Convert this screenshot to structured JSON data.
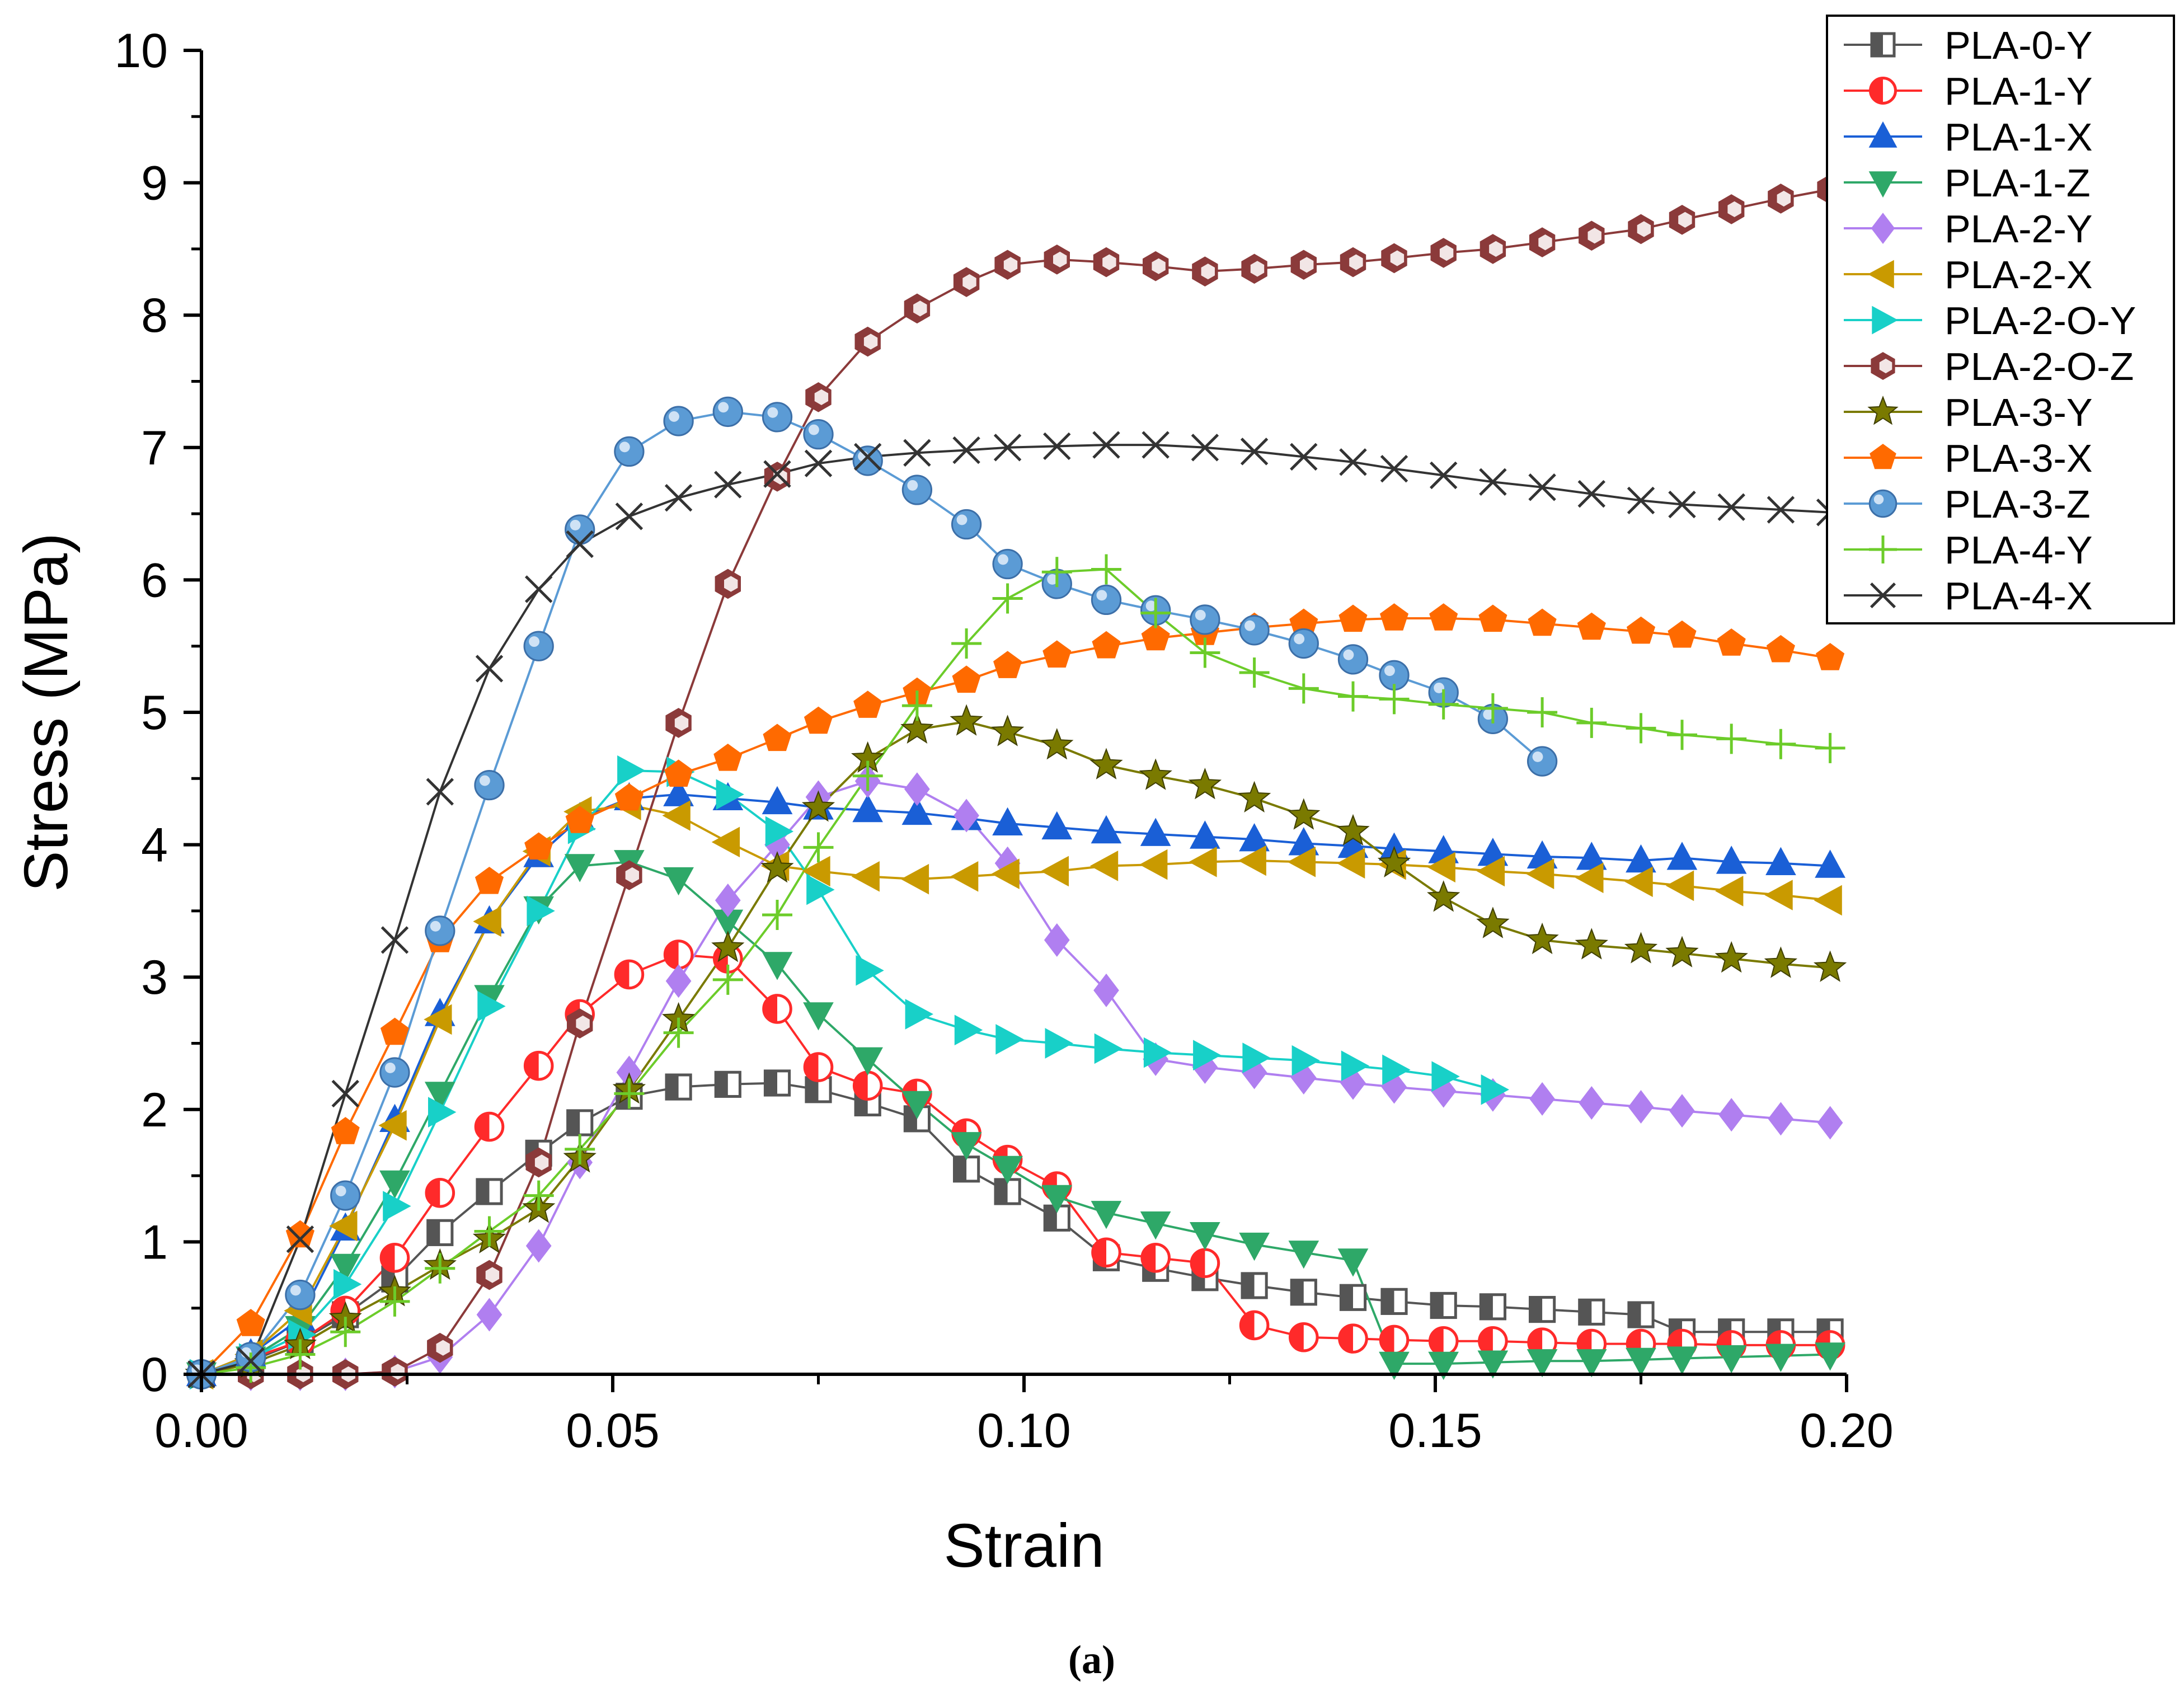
{
  "chart_data": {
    "type": "line",
    "title": "",
    "xlabel": "Strain",
    "ylabel": "Stress (MPa)",
    "caption": "(a)",
    "xlim": [
      0,
      0.2
    ],
    "ylim": [
      0,
      10
    ],
    "xticks": [
      0.0,
      0.05,
      0.1,
      0.15,
      0.2
    ],
    "xtick_labels": [
      "0.00",
      "0.05",
      "0.10",
      "0.15",
      "0.20"
    ],
    "yticks": [
      0,
      1,
      2,
      3,
      4,
      5,
      6,
      7,
      8,
      9,
      10
    ],
    "ytick_labels": [
      "0",
      "1",
      "2",
      "3",
      "4",
      "5",
      "6",
      "7",
      "8",
      "9",
      "10"
    ],
    "legend_position": "top-right",
    "series": [
      {
        "name": "PLA-0-Y",
        "color": "#555555",
        "marker": "square-half",
        "x": [
          0,
          0.006,
          0.012,
          0.0175,
          0.0235,
          0.029,
          0.035,
          0.041,
          0.046,
          0.052,
          0.058,
          0.064,
          0.07,
          0.075,
          0.081,
          0.087,
          0.093,
          0.098,
          0.104,
          0.11,
          0.116,
          0.122,
          0.128,
          0.134,
          0.14,
          0.145,
          0.151,
          0.157,
          0.163,
          0.169,
          0.175,
          0.18,
          0.186,
          0.192,
          0.198
        ],
        "y": [
          0,
          0.1,
          0.25,
          0.45,
          0.72,
          1.07,
          1.38,
          1.67,
          1.9,
          2.1,
          2.17,
          2.19,
          2.2,
          2.15,
          2.05,
          1.93,
          1.55,
          1.38,
          1.18,
          0.88,
          0.8,
          0.73,
          0.67,
          0.62,
          0.58,
          0.55,
          0.52,
          0.51,
          0.49,
          0.47,
          0.45,
          0.32,
          0.32,
          0.32,
          0.32
        ]
      },
      {
        "name": "PLA-1-Y",
        "color": "#ff2a2a",
        "marker": "circle-half",
        "x": [
          0,
          0.006,
          0.012,
          0.0175,
          0.0235,
          0.029,
          0.035,
          0.041,
          0.046,
          0.052,
          0.058,
          0.064,
          0.07,
          0.075,
          0.081,
          0.087,
          0.093,
          0.098,
          0.104,
          0.11,
          0.116,
          0.122,
          0.128,
          0.134,
          0.14,
          0.145,
          0.151,
          0.157,
          0.163,
          0.169,
          0.175,
          0.18,
          0.186,
          0.192,
          0.198
        ],
        "y": [
          0,
          0.12,
          0.25,
          0.48,
          0.88,
          1.37,
          1.87,
          2.33,
          2.72,
          3.02,
          3.17,
          3.14,
          2.76,
          2.32,
          2.18,
          2.12,
          1.82,
          1.62,
          1.42,
          0.92,
          0.88,
          0.84,
          0.37,
          0.28,
          0.27,
          0.26,
          0.25,
          0.25,
          0.24,
          0.23,
          0.23,
          0.23,
          0.22,
          0.22,
          0.22
        ]
      },
      {
        "name": "PLA-1-X",
        "color": "#1a5fd6",
        "marker": "triangle-up",
        "x": [
          0,
          0.006,
          0.012,
          0.0175,
          0.0235,
          0.029,
          0.035,
          0.041,
          0.046,
          0.052,
          0.058,
          0.064,
          0.07,
          0.075,
          0.081,
          0.087,
          0.093,
          0.098,
          0.104,
          0.11,
          0.116,
          0.122,
          0.128,
          0.134,
          0.14,
          0.145,
          0.151,
          0.157,
          0.163,
          0.169,
          0.175,
          0.18,
          0.186,
          0.192,
          0.198
        ],
        "y": [
          0,
          0.15,
          0.42,
          1.1,
          1.92,
          2.72,
          3.42,
          3.92,
          4.2,
          4.35,
          4.38,
          4.35,
          4.32,
          4.28,
          4.26,
          4.24,
          4.2,
          4.16,
          4.13,
          4.1,
          4.08,
          4.06,
          4.04,
          4.01,
          3.99,
          3.97,
          3.95,
          3.93,
          3.91,
          3.9,
          3.88,
          3.9,
          3.87,
          3.86,
          3.84
        ]
      },
      {
        "name": "PLA-1-Z",
        "color": "#2ea868",
        "marker": "triangle-down",
        "x": [
          0,
          0.006,
          0.012,
          0.0175,
          0.0235,
          0.029,
          0.035,
          0.041,
          0.046,
          0.052,
          0.058,
          0.064,
          0.07,
          0.075,
          0.081,
          0.087,
          0.093,
          0.098,
          0.104,
          0.11,
          0.116,
          0.122,
          0.128,
          0.134,
          0.14,
          0.145,
          0.151,
          0.157,
          0.163,
          0.169,
          0.175,
          0.18,
          0.186,
          0.192,
          0.198
        ],
        "y": [
          0,
          0.12,
          0.35,
          0.82,
          1.45,
          2.12,
          2.85,
          3.52,
          3.84,
          3.87,
          3.74,
          3.42,
          3.1,
          2.72,
          2.38,
          2.05,
          1.74,
          1.56,
          1.34,
          1.22,
          1.14,
          1.06,
          0.98,
          0.92,
          0.86,
          0.08,
          0.08,
          0.09,
          0.1,
          0.1,
          0.11,
          0.12,
          0.13,
          0.14,
          0.15
        ]
      },
      {
        "name": "PLA-2-Y",
        "color": "#b07ff0",
        "marker": "diamond",
        "x": [
          0,
          0.006,
          0.012,
          0.0175,
          0.0235,
          0.029,
          0.035,
          0.041,
          0.046,
          0.052,
          0.058,
          0.064,
          0.07,
          0.075,
          0.081,
          0.087,
          0.093,
          0.098,
          0.104,
          0.11,
          0.116,
          0.122,
          0.128,
          0.134,
          0.14,
          0.145,
          0.151,
          0.157,
          0.163,
          0.169,
          0.175,
          0.18,
          0.186,
          0.192,
          0.198
        ],
        "y": [
          0,
          0,
          0,
          0,
          0.02,
          0.13,
          0.45,
          0.97,
          1.6,
          2.28,
          2.97,
          3.58,
          4.0,
          4.36,
          4.48,
          4.42,
          4.22,
          3.86,
          3.28,
          2.9,
          2.38,
          2.32,
          2.28,
          2.24,
          2.2,
          2.17,
          2.14,
          2.11,
          2.08,
          2.05,
          2.02,
          1.99,
          1.96,
          1.93,
          1.9
        ]
      },
      {
        "name": "PLA-2-X",
        "color": "#c99a00",
        "marker": "triangle-left",
        "x": [
          0,
          0.006,
          0.012,
          0.0175,
          0.0235,
          0.029,
          0.035,
          0.041,
          0.046,
          0.052,
          0.058,
          0.064,
          0.07,
          0.075,
          0.081,
          0.087,
          0.093,
          0.098,
          0.104,
          0.11,
          0.116,
          0.122,
          0.128,
          0.134,
          0.14,
          0.145,
          0.151,
          0.157,
          0.163,
          0.169,
          0.175,
          0.18,
          0.186,
          0.192,
          0.198
        ],
        "y": [
          0,
          0.15,
          0.48,
          1.12,
          1.88,
          2.68,
          3.42,
          3.95,
          4.25,
          4.3,
          4.22,
          4.02,
          3.84,
          3.8,
          3.76,
          3.74,
          3.76,
          3.78,
          3.8,
          3.84,
          3.85,
          3.87,
          3.88,
          3.87,
          3.86,
          3.85,
          3.83,
          3.8,
          3.78,
          3.75,
          3.72,
          3.69,
          3.65,
          3.62,
          3.58
        ]
      },
      {
        "name": "PLA-2-O-Y",
        "color": "#18d0c8",
        "marker": "triangle-right",
        "x": [
          0,
          0.006,
          0.012,
          0.0175,
          0.0235,
          0.029,
          0.035,
          0.041,
          0.046,
          0.052,
          0.058,
          0.064,
          0.07,
          0.075,
          0.081,
          0.087,
          0.093,
          0.098,
          0.104,
          0.11,
          0.116,
          0.122,
          0.128,
          0.134,
          0.14,
          0.145,
          0.151,
          0.157
        ],
        "y": [
          0,
          0.12,
          0.3,
          0.68,
          1.27,
          1.98,
          2.78,
          3.5,
          4.12,
          4.56,
          4.55,
          4.38,
          4.1,
          3.66,
          3.05,
          2.72,
          2.6,
          2.53,
          2.5,
          2.46,
          2.43,
          2.41,
          2.39,
          2.37,
          2.33,
          2.3,
          2.25,
          2.15
        ]
      },
      {
        "name": "PLA-2-O-Z",
        "color": "#8b3a3a",
        "marker": "hexagon",
        "x": [
          0,
          0.006,
          0.012,
          0.0175,
          0.0235,
          0.029,
          0.035,
          0.041,
          0.046,
          0.052,
          0.058,
          0.064,
          0.07,
          0.075,
          0.081,
          0.087,
          0.093,
          0.098,
          0.104,
          0.11,
          0.116,
          0.122,
          0.128,
          0.134,
          0.14,
          0.145,
          0.151,
          0.157,
          0.163,
          0.169,
          0.175,
          0.18,
          0.186,
          0.192,
          0.198
        ],
        "y": [
          0,
          0,
          0,
          0,
          0.02,
          0.2,
          0.75,
          1.6,
          2.65,
          3.77,
          4.92,
          5.97,
          6.78,
          7.38,
          7.8,
          8.05,
          8.25,
          8.38,
          8.42,
          8.4,
          8.37,
          8.33,
          8.35,
          8.38,
          8.4,
          8.43,
          8.47,
          8.5,
          8.55,
          8.6,
          8.65,
          8.72,
          8.8,
          8.88,
          8.95
        ]
      },
      {
        "name": "PLA-3-Y",
        "color": "#7a7a00",
        "marker": "star",
        "x": [
          0,
          0.006,
          0.012,
          0.0175,
          0.0235,
          0.029,
          0.035,
          0.041,
          0.046,
          0.052,
          0.058,
          0.064,
          0.07,
          0.075,
          0.081,
          0.087,
          0.093,
          0.098,
          0.104,
          0.11,
          0.116,
          0.122,
          0.128,
          0.134,
          0.14,
          0.145,
          0.151,
          0.157,
          0.163,
          0.169,
          0.175,
          0.18,
          0.186,
          0.192,
          0.198
        ],
        "y": [
          0,
          0.08,
          0.22,
          0.42,
          0.62,
          0.82,
          1.02,
          1.25,
          1.63,
          2.15,
          2.68,
          3.22,
          3.82,
          4.28,
          4.65,
          4.87,
          4.93,
          4.85,
          4.75,
          4.6,
          4.52,
          4.45,
          4.35,
          4.22,
          4.1,
          3.86,
          3.6,
          3.4,
          3.28,
          3.24,
          3.21,
          3.18,
          3.14,
          3.1,
          3.07
        ]
      },
      {
        "name": "PLA-3-X",
        "color": "#ff6a00",
        "marker": "pentagon",
        "x": [
          0,
          0.006,
          0.012,
          0.0175,
          0.0235,
          0.029,
          0.035,
          0.041,
          0.046,
          0.052,
          0.058,
          0.064,
          0.07,
          0.075,
          0.081,
          0.087,
          0.093,
          0.098,
          0.104,
          0.11,
          0.116,
          0.122,
          0.128,
          0.134,
          0.14,
          0.145,
          0.151,
          0.157,
          0.163,
          0.169,
          0.175,
          0.18,
          0.186,
          0.192,
          0.198
        ],
        "y": [
          0,
          0.38,
          1.05,
          1.83,
          2.58,
          3.28,
          3.72,
          3.98,
          4.18,
          4.35,
          4.53,
          4.65,
          4.8,
          4.93,
          5.05,
          5.15,
          5.24,
          5.35,
          5.43,
          5.5,
          5.56,
          5.6,
          5.64,
          5.67,
          5.7,
          5.71,
          5.71,
          5.7,
          5.67,
          5.64,
          5.61,
          5.58,
          5.52,
          5.47,
          5.41
        ]
      },
      {
        "name": "PLA-3-Z",
        "color": "#5b9bd5",
        "marker": "sphere",
        "x": [
          0,
          0.006,
          0.012,
          0.0175,
          0.0235,
          0.029,
          0.035,
          0.041,
          0.046,
          0.052,
          0.058,
          0.064,
          0.07,
          0.075,
          0.081,
          0.087,
          0.093,
          0.098,
          0.104,
          0.11,
          0.116,
          0.122,
          0.128,
          0.134,
          0.14,
          0.145,
          0.151,
          0.157,
          0.163
        ],
        "y": [
          0,
          0.13,
          0.6,
          1.35,
          2.28,
          3.35,
          4.45,
          5.5,
          6.38,
          6.97,
          7.2,
          7.27,
          7.23,
          7.1,
          6.9,
          6.68,
          6.42,
          6.12,
          5.97,
          5.85,
          5.77,
          5.7,
          5.62,
          5.52,
          5.4,
          5.28,
          5.15,
          4.95,
          4.63
        ]
      },
      {
        "name": "PLA-4-Y",
        "color": "#6ccc2a",
        "marker": "plus",
        "x": [
          0,
          0.006,
          0.012,
          0.0175,
          0.0235,
          0.029,
          0.035,
          0.041,
          0.046,
          0.052,
          0.058,
          0.064,
          0.07,
          0.075,
          0.081,
          0.087,
          0.093,
          0.098,
          0.104,
          0.11,
          0.116,
          0.122,
          0.128,
          0.134,
          0.14,
          0.145,
          0.151,
          0.157,
          0.163,
          0.169,
          0.175,
          0.18,
          0.186,
          0.192,
          0.198
        ],
        "y": [
          0,
          0.05,
          0.15,
          0.32,
          0.55,
          0.8,
          1.08,
          1.35,
          1.7,
          2.12,
          2.58,
          2.98,
          3.47,
          3.98,
          4.52,
          5.05,
          5.52,
          5.86,
          6.06,
          6.08,
          5.75,
          5.45,
          5.3,
          5.18,
          5.12,
          5.1,
          5.06,
          5.03,
          5.0,
          4.92,
          4.88,
          4.83,
          4.8,
          4.76,
          4.73
        ]
      },
      {
        "name": "PLA-4-X",
        "color": "#333333",
        "marker": "cross",
        "x": [
          0,
          0.006,
          0.012,
          0.0175,
          0.0235,
          0.029,
          0.035,
          0.041,
          0.046,
          0.052,
          0.058,
          0.064,
          0.07,
          0.075,
          0.081,
          0.087,
          0.093,
          0.098,
          0.104,
          0.11,
          0.116,
          0.122,
          0.128,
          0.134,
          0.14,
          0.145,
          0.151,
          0.157,
          0.163,
          0.169,
          0.175,
          0.18,
          0.186,
          0.192,
          0.198
        ],
        "y": [
          0,
          0.1,
          1.02,
          2.12,
          3.28,
          4.4,
          5.33,
          5.93,
          6.27,
          6.48,
          6.62,
          6.72,
          6.8,
          6.88,
          6.93,
          6.96,
          6.98,
          7.0,
          7.01,
          7.02,
          7.02,
          7.0,
          6.97,
          6.93,
          6.89,
          6.84,
          6.79,
          6.74,
          6.7,
          6.65,
          6.6,
          6.57,
          6.55,
          6.53,
          6.51
        ]
      }
    ]
  }
}
